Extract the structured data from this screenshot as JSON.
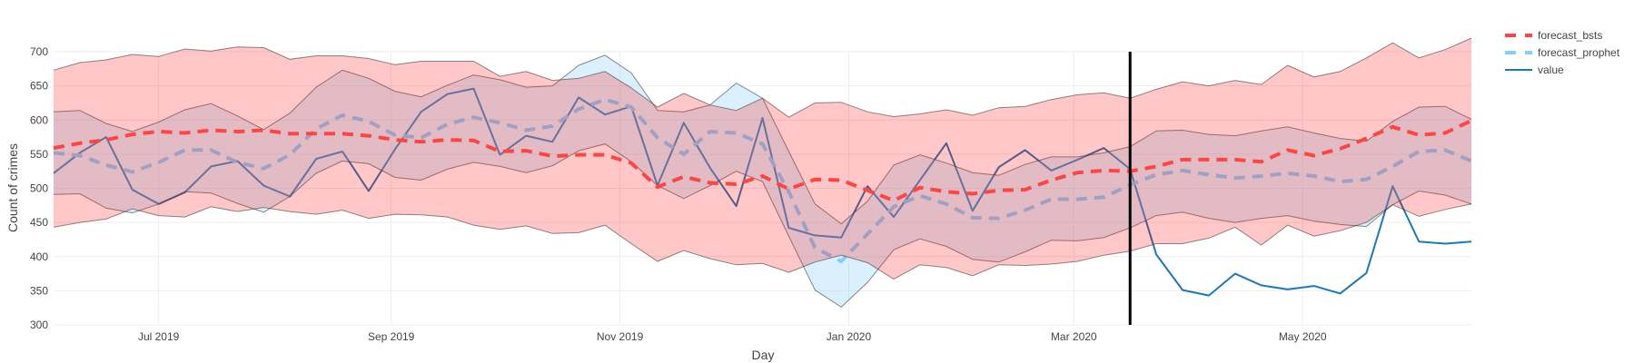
{
  "chart_data": {
    "type": "line",
    "title": "",
    "xlabel": "Day",
    "ylabel": "Count of crimes",
    "ylim": [
      300,
      700
    ],
    "xlim": [
      "2019-06-03",
      "2020-06-15"
    ],
    "grid": true,
    "legend_position": "top-right (outside plot)",
    "y_ticks": [
      "300",
      "350",
      "400",
      "450",
      "500",
      "550",
      "600",
      "650",
      "700"
    ],
    "x_ticks": [
      {
        "date": "2019-07-01",
        "label": "Jul 2019"
      },
      {
        "date": "2019-09-01",
        "label": "Sep 2019"
      },
      {
        "date": "2019-11-01",
        "label": "Nov 2019"
      },
      {
        "date": "2020-01-01",
        "label": "Jan 2020"
      },
      {
        "date": "2020-03-01",
        "label": "Mar 2020"
      },
      {
        "date": "2020-05-01",
        "label": "May 2020"
      }
    ],
    "vertical_marker": {
      "date": "2020-03-16",
      "color": "#000000"
    },
    "x": [
      "2019-06-03",
      "2019-06-10",
      "2019-06-17",
      "2019-06-24",
      "2019-07-01",
      "2019-07-08",
      "2019-07-15",
      "2019-07-22",
      "2019-07-29",
      "2019-08-05",
      "2019-08-12",
      "2019-08-19",
      "2019-08-26",
      "2019-09-02",
      "2019-09-09",
      "2019-09-16",
      "2019-09-23",
      "2019-09-30",
      "2019-10-07",
      "2019-10-14",
      "2019-10-21",
      "2019-10-28",
      "2019-11-04",
      "2019-11-11",
      "2019-11-18",
      "2019-11-25",
      "2019-12-02",
      "2019-12-09",
      "2019-12-16",
      "2019-12-23",
      "2019-12-30",
      "2020-01-06",
      "2020-01-13",
      "2020-01-20",
      "2020-01-27",
      "2020-02-03",
      "2020-02-10",
      "2020-02-17",
      "2020-02-24",
      "2020-03-02",
      "2020-03-09",
      "2020-03-16",
      "2020-03-23",
      "2020-03-30",
      "2020-04-06",
      "2020-04-13",
      "2020-04-20",
      "2020-04-27",
      "2020-05-04",
      "2020-05-11",
      "2020-05-18",
      "2020-05-25",
      "2020-06-01",
      "2020-06-08",
      "2020-06-15"
    ],
    "series": [
      {
        "name": "forecast_bsts",
        "color": "#ff4444",
        "style": "dashed",
        "values": [
          559,
          566,
          571,
          579,
          583,
          581,
          585,
          583,
          585,
          580,
          580,
          580,
          577,
          571,
          568,
          571,
          570,
          554,
          555,
          547,
          549,
          549,
          537,
          502,
          517,
          508,
          506,
          518,
          499,
          513,
          512,
          497,
          482,
          501,
          495,
          492,
          497,
          498,
          512,
          523,
          526,
          525,
          532,
          542,
          542,
          542,
          539,
          556,
          548,
          558,
          573,
          590,
          578,
          581,
          599
        ],
        "band_color": "rgba(255,0,0,0.22)",
        "upper": [
          673,
          684,
          688,
          696,
          693,
          704,
          701,
          707,
          706,
          689,
          694,
          694,
          690,
          681,
          686,
          686,
          686,
          664,
          671,
          658,
          661,
          671,
          647,
          619,
          639,
          622,
          614,
          632,
          604,
          625,
          626,
          612,
          605,
          609,
          615,
          607,
          618,
          620,
          630,
          637,
          640,
          632,
          645,
          656,
          650,
          658,
          652,
          680,
          663,
          671,
          691,
          713,
          691,
          703,
          720
        ],
        "lower": [
          443,
          450,
          455,
          470,
          460,
          458,
          473,
          466,
          472,
          466,
          462,
          468,
          456,
          462,
          461,
          458,
          446,
          440,
          445,
          434,
          435,
          446,
          419,
          393,
          409,
          397,
          388,
          390,
          377,
          392,
          402,
          391,
          367,
          388,
          384,
          372,
          388,
          387,
          389,
          393,
          402,
          408,
          419,
          419,
          427,
          443,
          417,
          446,
          430,
          438,
          450,
          476,
          459,
          469,
          477
        ]
      },
      {
        "name": "forecast_prophet",
        "color": "#87cefa",
        "style": "dashed",
        "values": [
          552,
          548,
          534,
          524,
          538,
          556,
          556,
          538,
          529,
          549,
          587,
          607,
          598,
          578,
          574,
          594,
          604,
          596,
          585,
          591,
          616,
          630,
          619,
          574,
          550,
          583,
          581,
          565,
          495,
          413,
          393,
          433,
          473,
          489,
          477,
          457,
          456,
          468,
          484,
          484,
          487,
          505,
          520,
          526,
          520,
          515,
          518,
          522,
          518,
          510,
          513,
          532,
          554,
          556,
          540
        ],
        "band_color": "rgba(135,206,250,0.3)",
        "upper": [
          612,
          614,
          595,
          583,
          597,
          615,
          624,
          606,
          586,
          610,
          648,
          673,
          661,
          642,
          634,
          651,
          666,
          659,
          648,
          650,
          680,
          695,
          669,
          614,
          612,
          622,
          654,
          632,
          554,
          477,
          448,
          481,
          534,
          549,
          537,
          523,
          519,
          535,
          546,
          546,
          552,
          561,
          584,
          585,
          579,
          577,
          584,
          590,
          581,
          573,
          569,
          598,
          619,
          620,
          601
        ],
        "lower": [
          491,
          492,
          471,
          464,
          477,
          495,
          493,
          478,
          465,
          488,
          522,
          540,
          536,
          516,
          512,
          528,
          538,
          532,
          523,
          533,
          555,
          565,
          539,
          504,
          485,
          504,
          525,
          510,
          430,
          351,
          326,
          362,
          410,
          426,
          415,
          396,
          392,
          407,
          424,
          423,
          428,
          442,
          460,
          465,
          456,
          450,
          456,
          460,
          452,
          447,
          444,
          476,
          496,
          490,
          477
        ]
      },
      {
        "name": "value",
        "color": "#1f77b4",
        "style": "solid",
        "values": [
          522,
          552,
          575,
          498,
          477,
          494,
          532,
          540,
          504,
          488,
          543,
          554,
          496,
          557,
          612,
          638,
          646,
          549,
          577,
          568,
          633,
          608,
          620,
          504,
          596,
          530,
          474,
          603,
          442,
          431,
          428,
          503,
          458,
          512,
          566,
          467,
          531,
          556,
          526,
          542,
          559,
          528,
          403,
          351,
          343,
          375,
          358,
          352,
          357,
          346,
          376,
          503,
          422,
          419,
          422
        ]
      }
    ]
  }
}
